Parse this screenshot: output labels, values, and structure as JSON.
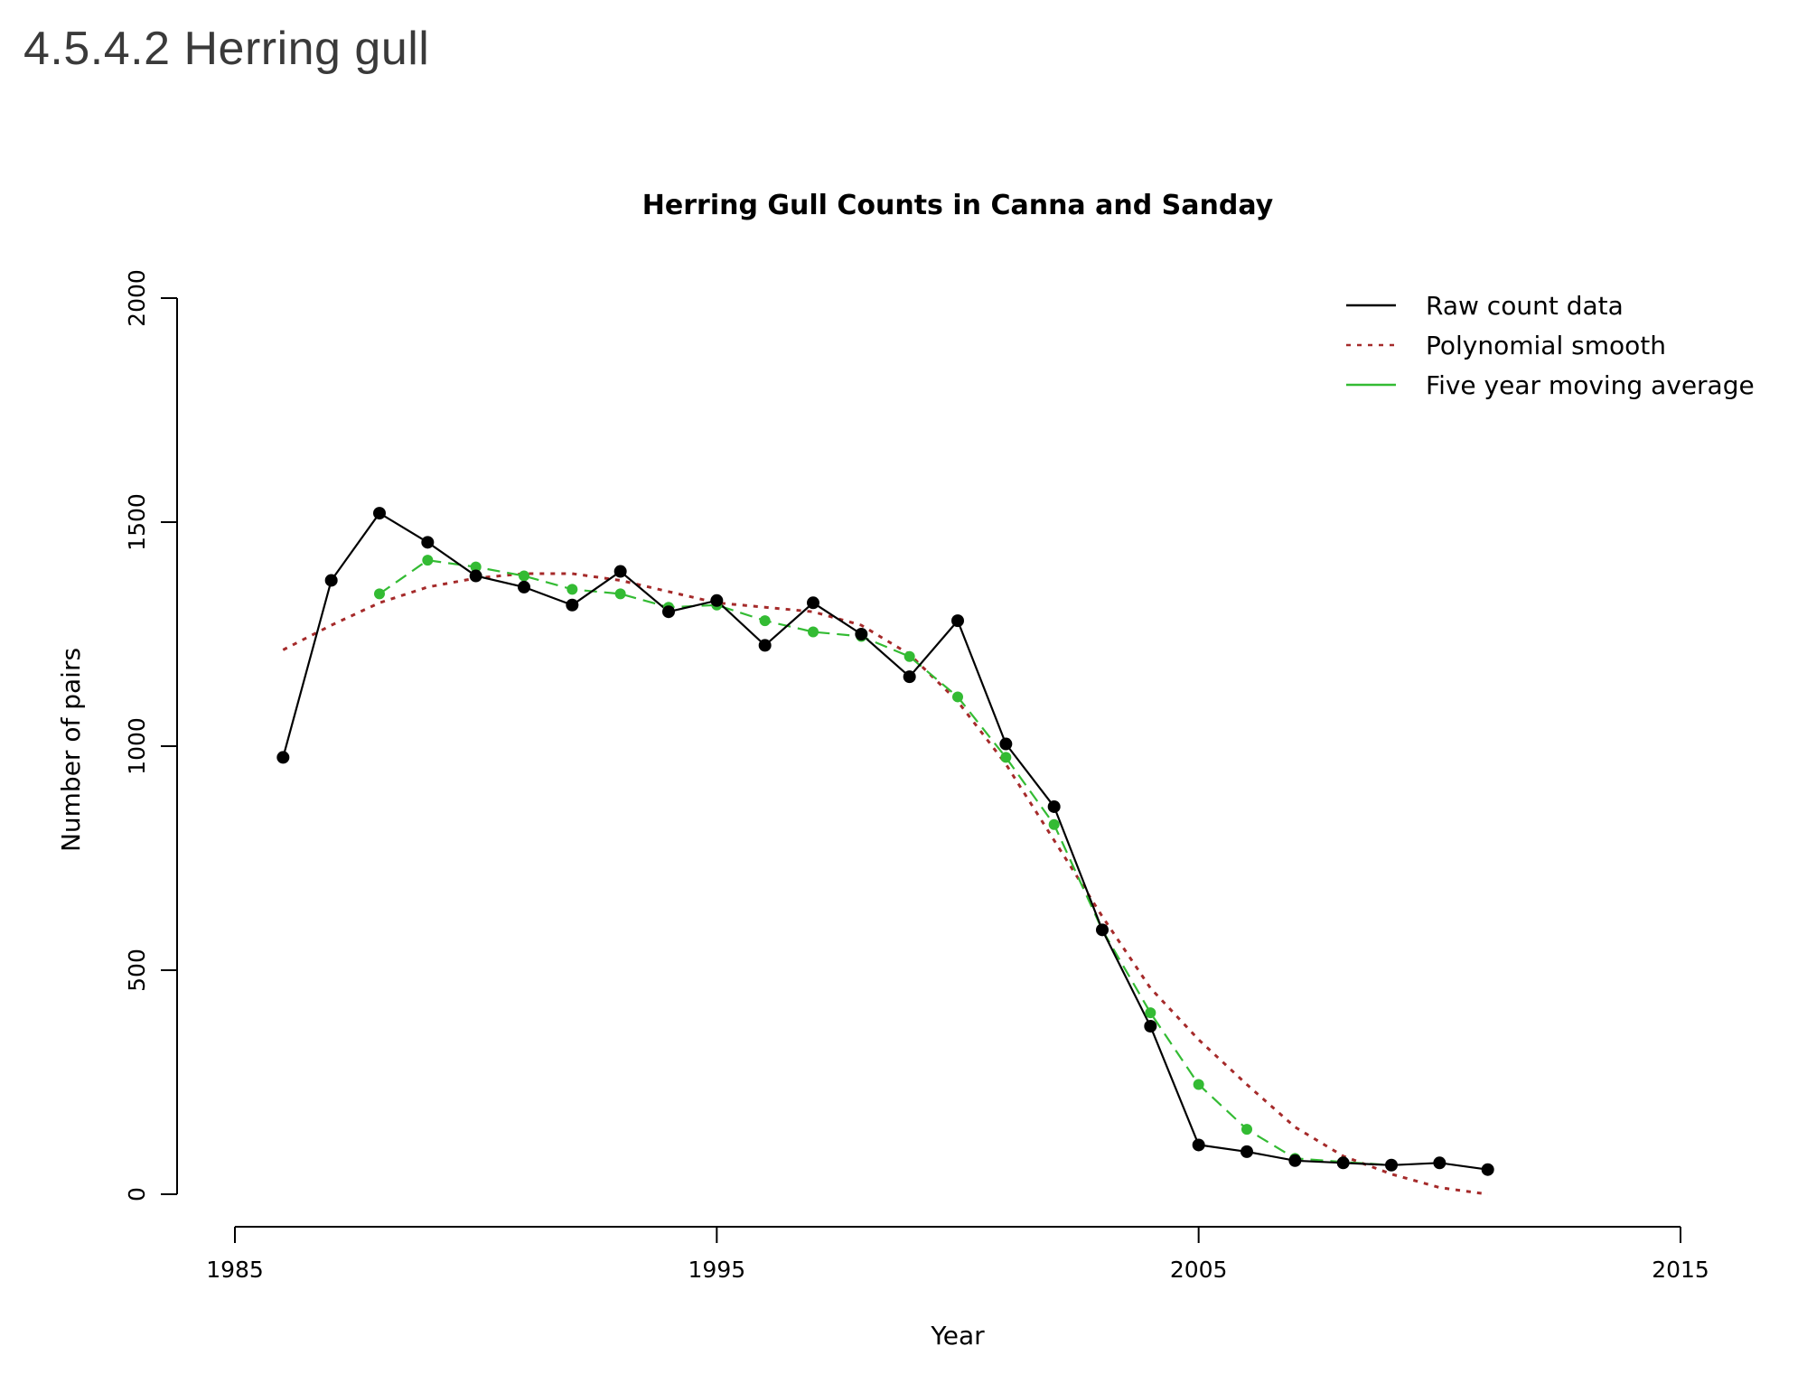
{
  "heading": "4.5.4.2 Herring gull",
  "chart_data": {
    "type": "line",
    "title": "Herring Gull Counts in Canna and Sanday",
    "xlabel": "Year",
    "ylabel": "Number of pairs",
    "xlim": [
      1985,
      2015
    ],
    "ylim": [
      0,
      2000
    ],
    "x_ticks": [
      "1985",
      "1995",
      "2005",
      "2015"
    ],
    "y_ticks": [
      "0",
      "500",
      "1000",
      "1500",
      "2000"
    ],
    "legend_position": "top-right",
    "series": [
      {
        "name": "Raw count data",
        "color": "#000000",
        "style": "solid",
        "markers": true,
        "x": [
          1986,
          1987,
          1988,
          1989,
          1990,
          1991,
          1992,
          1993,
          1994,
          1995,
          1996,
          1997,
          1998,
          1999,
          2000,
          2001,
          2002,
          2003,
          2004,
          2005,
          2006,
          2007,
          2008,
          2009,
          2010,
          2011
        ],
        "y": [
          975,
          1370,
          1520,
          1455,
          1380,
          1355,
          1315,
          1390,
          1300,
          1325,
          1225,
          1320,
          1250,
          1155,
          1280,
          1005,
          865,
          590,
          375,
          110,
          95,
          75,
          70,
          65,
          70,
          55
        ]
      },
      {
        "name": "Polynomial smooth",
        "color": "#a52a2a",
        "style": "dotted",
        "markers": false,
        "x": [
          1986,
          1987,
          1988,
          1989,
          1990,
          1991,
          1992,
          1993,
          1994,
          1995,
          1996,
          1997,
          1998,
          1999,
          2000,
          2001,
          2002,
          2003,
          2004,
          2005,
          2006,
          2007,
          2008,
          2009,
          2010,
          2011
        ],
        "y": [
          1215,
          1270,
          1320,
          1355,
          1375,
          1385,
          1385,
          1370,
          1345,
          1320,
          1310,
          1300,
          1270,
          1205,
          1100,
          960,
          790,
          620,
          460,
          345,
          245,
          150,
          85,
          45,
          15,
          0
        ]
      },
      {
        "name": "Five year moving average",
        "color": "#33bb33",
        "style": "dashed",
        "markers": true,
        "x": [
          1988,
          1989,
          1990,
          1991,
          1992,
          1993,
          1994,
          1995,
          1996,
          1997,
          1998,
          1999,
          2000,
          2001,
          2002,
          2003,
          2004,
          2005,
          2006,
          2007,
          2008,
          2009
        ],
        "y": [
          1340,
          1415,
          1400,
          1380,
          1350,
          1340,
          1310,
          1315,
          1280,
          1255,
          1245,
          1200,
          1110,
          975,
          825,
          590,
          405,
          245,
          145,
          80,
          72,
          65
        ]
      }
    ]
  }
}
